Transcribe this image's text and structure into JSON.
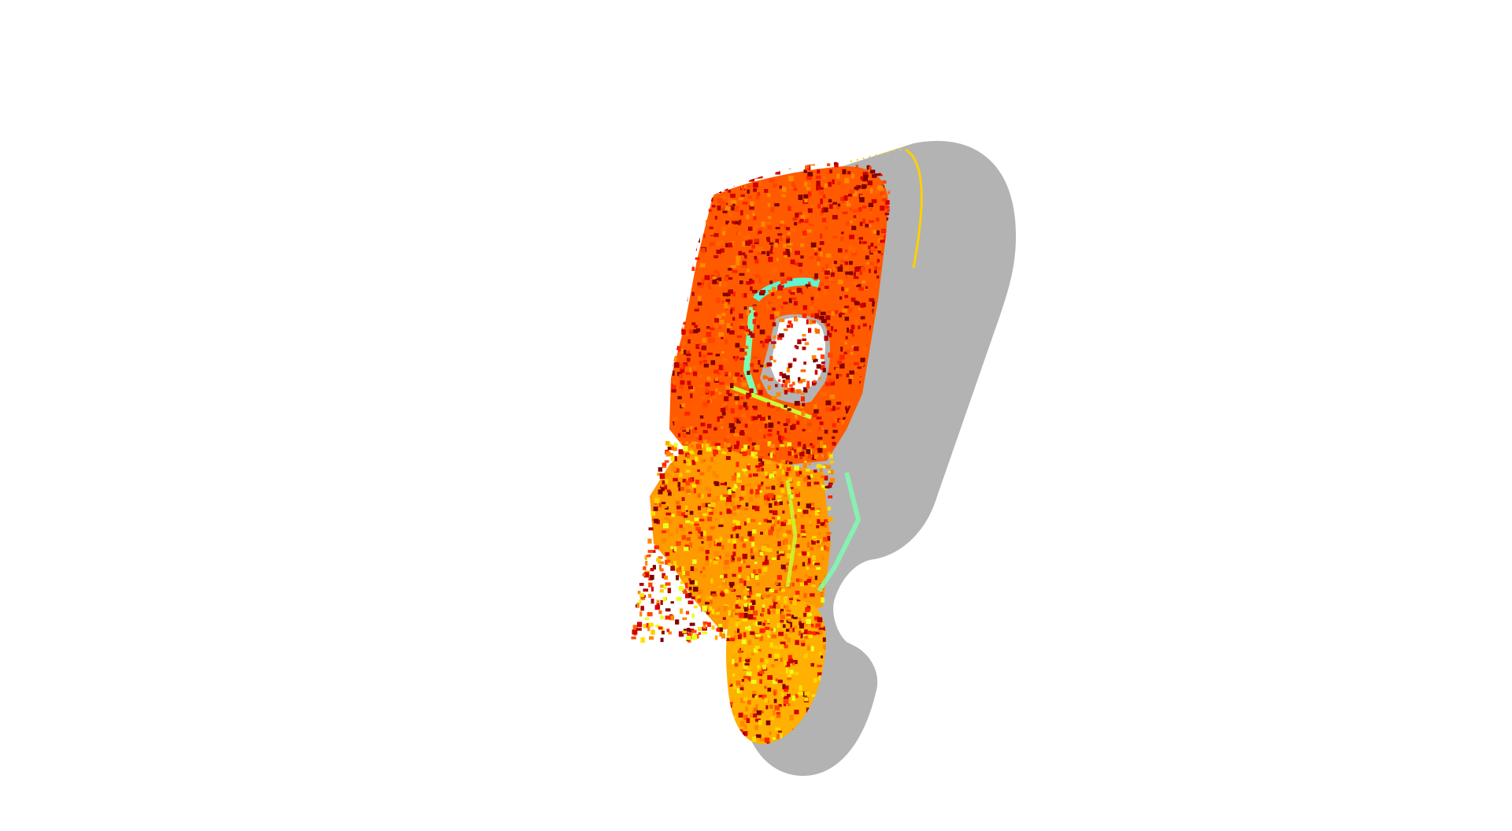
{
  "viewer": {
    "background_color": "#ffffff",
    "shadow_color": "#b3b3b3",
    "colormap": "jet",
    "colormap_stops": [
      "#7f0000",
      "#d40000",
      "#ff3300",
      "#ff7a00",
      "#ffb000",
      "#ffe000",
      "#c8ff37",
      "#7dffb0",
      "#4cf5e8"
    ]
  },
  "scene": {
    "description_icon": "point-cloud-icon"
  }
}
